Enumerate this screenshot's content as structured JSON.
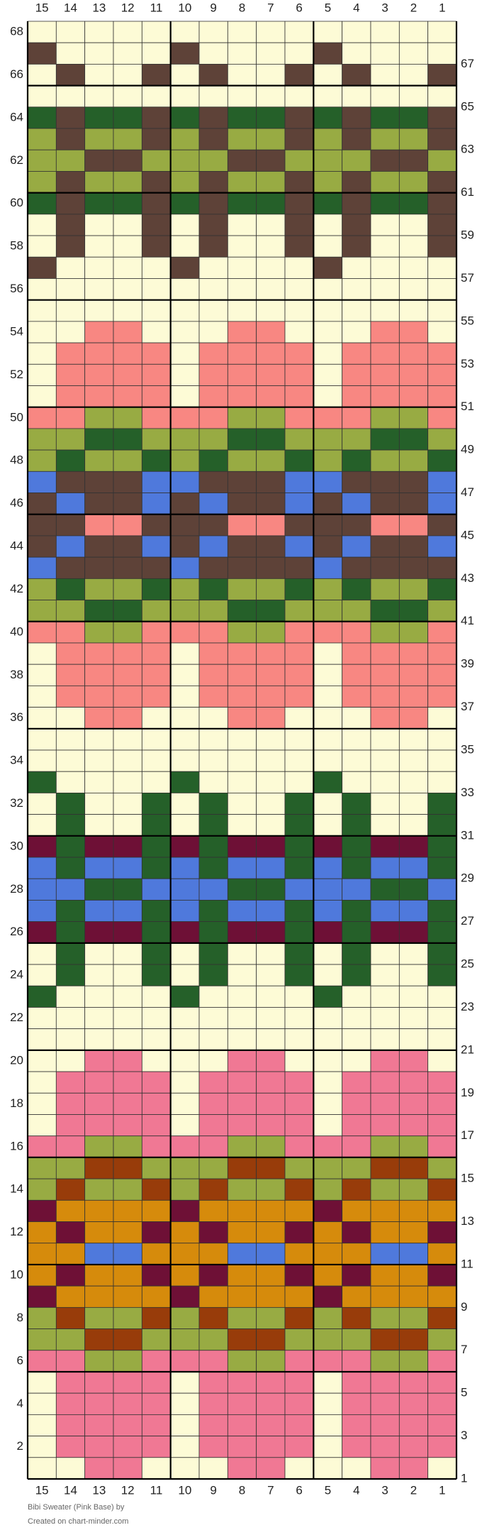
{
  "title": "Bibi Sweater (Pink Base) by",
  "credit": "Created on chart-minder.com",
  "column_labels": [
    15,
    14,
    13,
    12,
    11,
    10,
    9,
    8,
    7,
    6,
    5,
    4,
    3,
    2,
    1
  ],
  "row_labels": [
    68,
    67,
    66,
    65,
    64,
    63,
    62,
    61,
    60,
    59,
    58,
    57,
    56,
    55,
    54,
    53,
    52,
    51,
    50,
    49,
    48,
    47,
    46,
    45,
    44,
    43,
    42,
    41,
    40,
    39,
    38,
    37,
    36,
    35,
    34,
    33,
    32,
    31,
    30,
    29,
    28,
    27,
    26,
    25,
    24,
    23,
    22,
    21,
    20,
    19,
    18,
    17,
    16,
    15,
    14,
    13,
    12,
    11,
    10,
    9,
    8,
    7,
    6,
    5,
    4,
    3,
    2,
    1
  ],
  "palette": {
    "Y": "#fdfbd6",
    "B": "#5e4238",
    "G": "#256029",
    "L": "#98ab43",
    "P": "#f88782",
    "K": "#f07894",
    "M": "#6e1036",
    "U": "#4f79dc",
    "O": "#d68b0c",
    "R": "#983c0a"
  },
  "rows": [
    "YYYYYYYYYYYYYYY",
    "BYYYYBYYYYBYYYY",
    "YBYYBYBYYBYBYYB",
    "YYYYYYYYYYYYYYY",
    "GBGGBGBGGBGBGGB",
    "LBLLBLBLLBLBLLB",
    "LLBBLLLBBLLLBBL",
    "LBLLBLBLLBLBLLB",
    "GBGGBGBGGBGBGGB",
    "YBYYBYBYYBYBYYB",
    "YBYYBYBYYBYBYYB",
    "BYYYYBYYYYBYYYY",
    "YYYYYYYYYYYYYYY",
    "YYYYYYYYYYYYYYY",
    "YYPPYYYPPYYYPPY",
    "YPPPPYPPPPYPPPP",
    "YPPPPYPPPPYPPPP",
    "YPPPPYPPPPYPPPP",
    "PPLLPPPLLPPPLLP",
    "LLGGLLLGGLLLGGL",
    "LGLLGLGLLGLGLLG",
    "UBBBUUBBBUUBBBU",
    "BUBBUBUBBUBUBBU",
    "BBPPBBBPPBBBPPB",
    "BUBBUBUBBUBUBBU",
    "UBBBBUBBBBUBBBB",
    "LGLLGLGLLGLGLLG",
    "LLGGLLLGGLLLGGL",
    "PPLLPPPLLPPPLLP",
    "YPPPPYPPPPYPPPP",
    "YPPPPYPPPPYPPPP",
    "YPPPPYPPPPYPPPP",
    "YYPPYYYPPYYYPPY",
    "YYYYYYYYYYYYYYY",
    "YYYYYYYYYYYYYYY",
    "GYYYYGYYYYGYYYY",
    "YGYYGYGYYGYGYYG",
    "YGYYGYGYYGYGYYG",
    "MGMMGMGMMGMGMMG",
    "UGUUGUGUUGUGUUG",
    "UUGGUUUGGUUUGGU",
    "UGUUGUGUUGUGUUG",
    "MGMMGMGMMGMGMMG",
    "YGYYGYGYYGYGYYG",
    "YGYYGYGYYGYGYYG",
    "GYYYYGYYYYGYYYY",
    "YYYYYYYYYYYYYYY",
    "YYYYYYYYYYYYYYY",
    "YYKKYYYKKYYYKKY",
    "YKKKKYKKKKYKKKK",
    "YKKKKYKKKKYKKKK",
    "YKKKKYKKKKYKKKK",
    "KKLLKKKLLKKKLLK",
    "LLRRLLLRRLLLRRL",
    "LRLLRLRLLRLRLLR",
    "MOOOOMOOOOMOOOO",
    "OMOOMOMOOMOMOOM",
    "OOUUOOOUUOOOUUO",
    "OMOOMOMOOMOMOOM",
    "MOOOOMOOOOMOOOO",
    "LRLLRLRLLRLRLLR",
    "LLRRLLLRRLLLRRL",
    "KKLLKKKLLKKKLLK",
    "YKKKKYKKKKYKKKK",
    "YKKKKYKKKKYKKKK",
    "YKKKKYKKKKYKKKK",
    "YKKKKYKKKKYKKKK",
    "YYKKYYYKKYYYKKY"
  ]
}
